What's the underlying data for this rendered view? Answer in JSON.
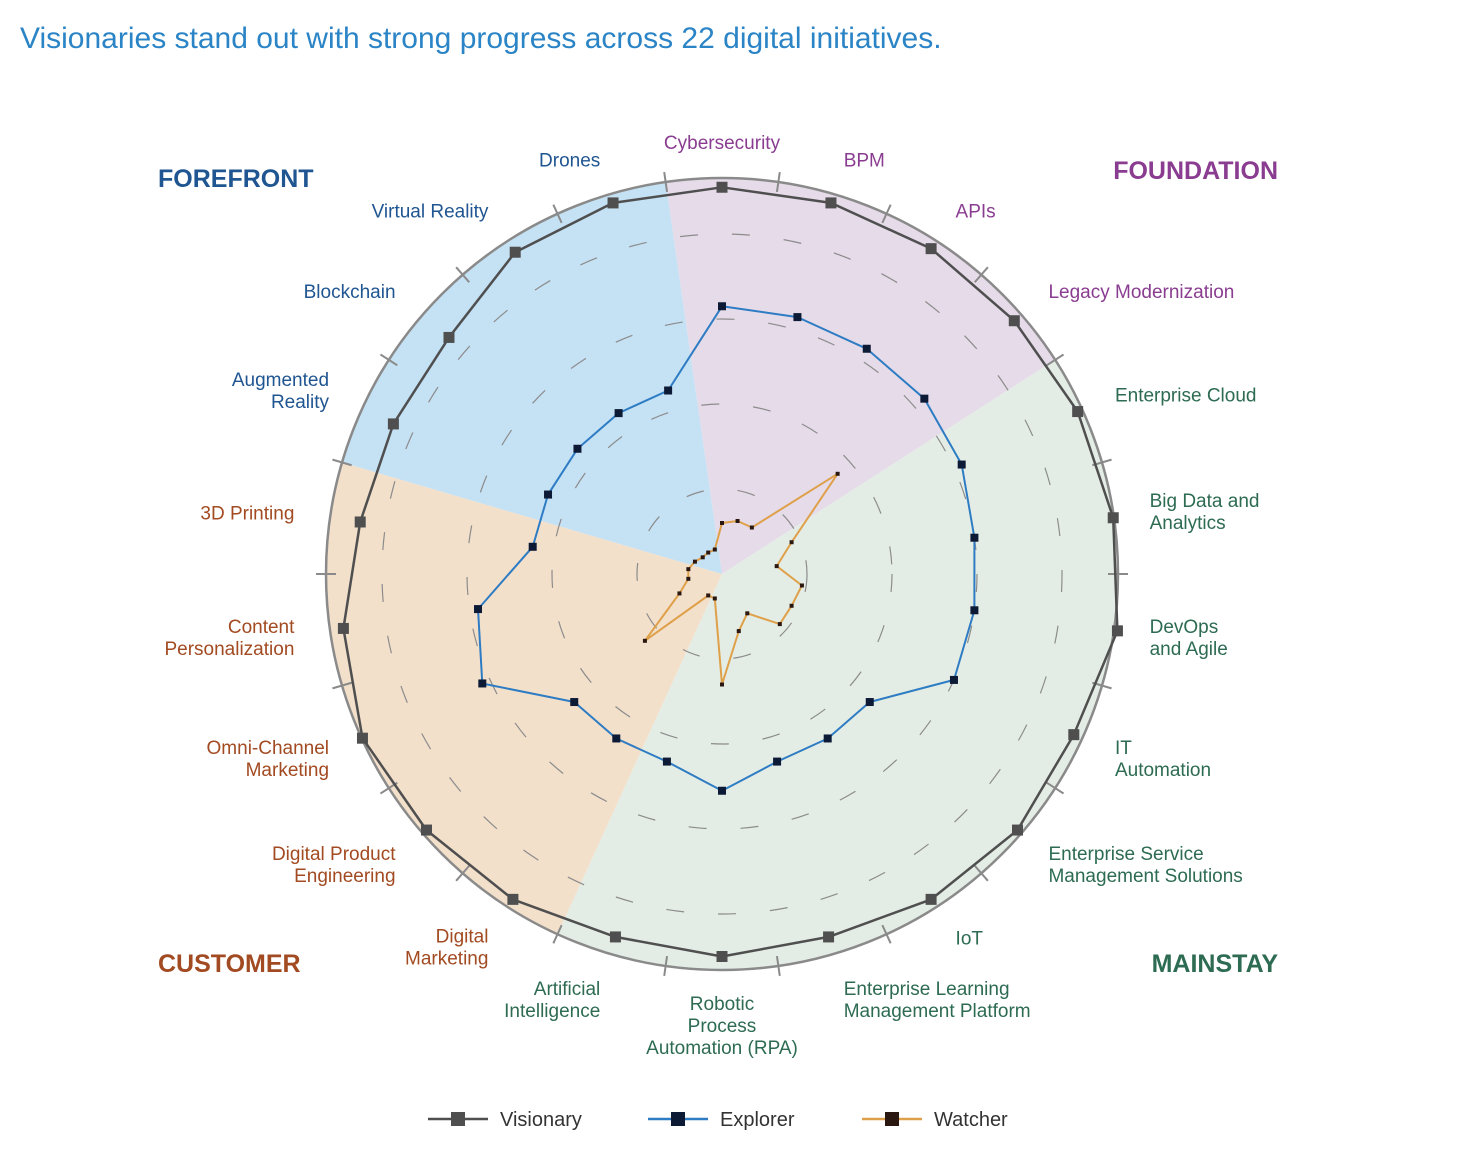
{
  "title": "Visionaries stand out with strong progress across 22 digital initiatives.",
  "colors": {
    "forefront": "#1f5591",
    "foundation": "#8a3d90",
    "customer": "#a24a21",
    "mainstay": "#2d6b52",
    "forefront_fill": "#c5e1f4",
    "foundation_fill": "#e6dbe9",
    "customer_fill": "#f2e0cb",
    "mainstay_fill": "#e4ede5",
    "visionary": "#4f4f4f",
    "explorer": "#2e7cc3",
    "watcher": "#dfa04a",
    "explorer_marker": "#0d1a36",
    "watcher_marker": "#2a1710"
  },
  "chart_data": {
    "type": "radar",
    "title": "",
    "rmax": 10,
    "grid_rings": [
      2,
      4,
      6,
      8
    ],
    "categories": [
      "Cybersecurity",
      "BPM",
      "APIs",
      "Legacy Modernization",
      "Enterprise Cloud",
      "Big Data and Analytics",
      "DevOps and Agile",
      "IT Automation",
      "Enterprise Service Management Solutions",
      "IoT",
      "Enterprise Learning Management Platform",
      "Robotic Process Automation (RPA)",
      "Artificial Intelligence",
      "Digital Marketing",
      "Digital Product Engineering",
      "Omni-Channel Marketing",
      "Content Personalization",
      "3D Printing",
      "Augmented Reality",
      "Blockchain",
      "Virtual Reality",
      "Drones"
    ],
    "quadrants": [
      {
        "name": "FOUNDATION",
        "categories": [
          "Cybersecurity",
          "BPM",
          "APIs",
          "Legacy Modernization"
        ]
      },
      {
        "name": "MAINSTAY",
        "categories": [
          "Enterprise Cloud",
          "Big Data and Analytics",
          "DevOps and Agile",
          "IT Automation",
          "Enterprise Service Management Solutions",
          "IoT",
          "Enterprise Learning Management Platform",
          "Robotic Process Automation (RPA)",
          "Artificial Intelligence"
        ]
      },
      {
        "name": "CUSTOMER",
        "categories": [
          "Digital Marketing",
          "Digital Product Engineering",
          "Omni-Channel Marketing",
          "Content Personalization",
          "3D Printing"
        ]
      },
      {
        "name": "FOREFRONT",
        "categories": [
          "Augmented Reality",
          "Blockchain",
          "Virtual Reality",
          "Drones"
        ]
      }
    ],
    "series": [
      {
        "name": "Visionary",
        "values": [
          9.1,
          9.1,
          9.1,
          9.1,
          9.2,
          9.3,
          9.4,
          9.1,
          9.2,
          9.1,
          8.9,
          9.0,
          8.9,
          9.1,
          9.2,
          9.3,
          9.0,
          8.6,
          8.5,
          8.5,
          9.0,
          9.1
        ]
      },
      {
        "name": "Explorer",
        "values": [
          6.3,
          6.3,
          6.3,
          6.3,
          6.2,
          6.0,
          6.0,
          6.0,
          4.6,
          4.6,
          4.6,
          5.1,
          4.6,
          4.6,
          4.6,
          6.2,
          5.8,
          4.5,
          4.5,
          4.5,
          4.5,
          4.5
        ]
      },
      {
        "name": "Watcher",
        "values": [
          1.2,
          1.3,
          1.3,
          3.6,
          1.8,
          1.3,
          1.9,
          1.8,
          1.8,
          1.1,
          1.4,
          2.6,
          0.6,
          0.6,
          2.4,
          1.1,
          0.8,
          0.8,
          0.7,
          0.6,
          0.6,
          0.6
        ]
      }
    ],
    "legend": {
      "position": "bottom",
      "entries": [
        "Visionary",
        "Explorer",
        "Watcher"
      ]
    }
  }
}
